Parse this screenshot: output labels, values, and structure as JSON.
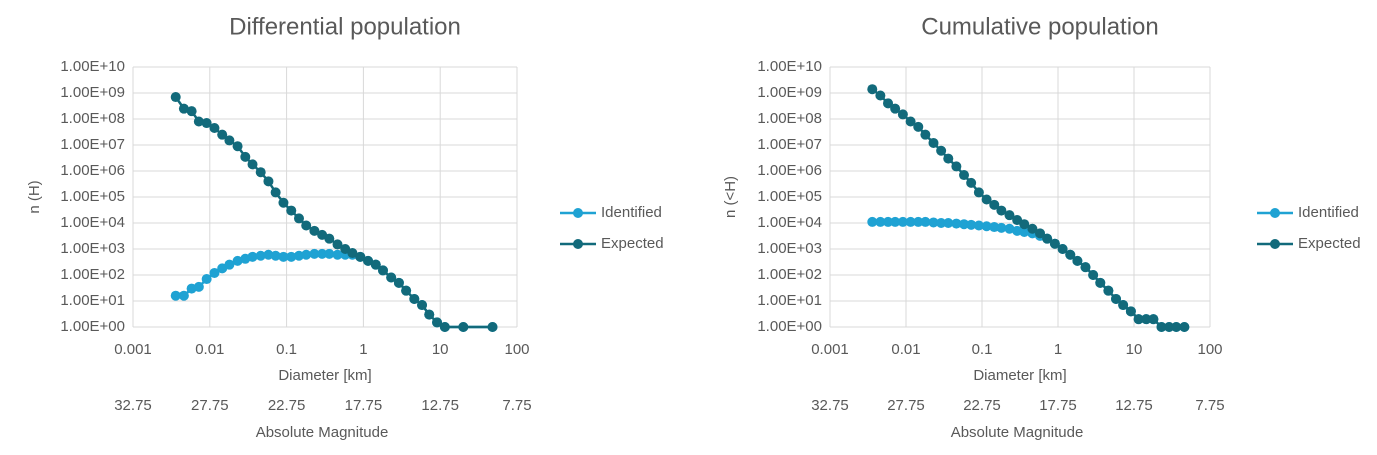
{
  "chart_data": [
    {
      "type": "line",
      "title": "Differential population",
      "x_label": "Diameter [km]",
      "y_label": "n (H)",
      "x2_label": "Absolute Magnitude",
      "x": [
        0.0036,
        0.0046,
        0.0058,
        0.0072,
        0.0091,
        0.0115,
        0.0145,
        0.018,
        0.023,
        0.029,
        0.036,
        0.046,
        0.058,
        0.072,
        0.091,
        0.115,
        0.145,
        0.18,
        0.23,
        0.29,
        0.36,
        0.46,
        0.58,
        0.72,
        0.91,
        1.15,
        1.45,
        1.8,
        2.3,
        2.9,
        3.6,
        4.6,
        5.8,
        7.2,
        9.1,
        11.5,
        20,
        48
      ],
      "series": [
        {
          "name": "Identified",
          "color": "#1fa2d3",
          "values": [
            16,
            16,
            30,
            35,
            70,
            120,
            180,
            250,
            350,
            420,
            500,
            550,
            600,
            550,
            500,
            500,
            550,
            600,
            650,
            650,
            650,
            600,
            600,
            600,
            500,
            350,
            250,
            150,
            80,
            50,
            25,
            12,
            7,
            3,
            1.5,
            1,
            1,
            1
          ]
        },
        {
          "name": "Expected",
          "color": "#126a7b",
          "values": [
            700000000,
            250000000,
            200000000,
            80000000,
            70000000,
            45000000,
            25000000,
            15000000,
            9000000,
            3500000,
            1800000,
            900000,
            400000,
            150000,
            60000,
            30000,
            15000,
            8000,
            5000,
            3500,
            2500,
            1500,
            1000,
            700,
            500,
            350,
            250,
            150,
            80,
            50,
            25,
            12,
            7,
            3,
            1.5,
            1,
            1,
            1
          ]
        }
      ],
      "xscale": "log",
      "yscale": "log",
      "xlim": [
        0.001,
        100
      ],
      "xticks": [
        0.001,
        0.01,
        0.1,
        1,
        10,
        100
      ],
      "ylim": [
        1,
        10000000000
      ],
      "yticks": [
        {
          "value": 1,
          "label": "1.00E+00"
        },
        {
          "value": 10,
          "label": "1.00E+01"
        },
        {
          "value": 100,
          "label": "1.00E+02"
        },
        {
          "value": 1000,
          "label": "1.00E+03"
        },
        {
          "value": 10000,
          "label": "1.00E+04"
        },
        {
          "value": 100000,
          "label": "1.00E+05"
        },
        {
          "value": 1000000,
          "label": "1.00E+06"
        },
        {
          "value": 10000000,
          "label": "1.00E+07"
        },
        {
          "value": 100000000,
          "label": "1.00E+08"
        },
        {
          "value": 1000000000,
          "label": "1.00E+09"
        },
        {
          "value": 10000000000,
          "label": "1.00E+10"
        }
      ],
      "x2lim": [
        32.75,
        7.75
      ],
      "x2ticks": [
        32.75,
        27.75,
        22.75,
        17.75,
        12.75,
        7.75
      ],
      "grid": true,
      "legend": "right"
    },
    {
      "type": "line",
      "title": "Cumulative population",
      "x_label": "Diameter [km]",
      "y_label": "n (<H)",
      "x2_label": "Absolute Magnitude",
      "x": [
        0.0036,
        0.0046,
        0.0058,
        0.0072,
        0.0091,
        0.0115,
        0.0145,
        0.018,
        0.023,
        0.029,
        0.036,
        0.046,
        0.058,
        0.072,
        0.091,
        0.115,
        0.145,
        0.18,
        0.23,
        0.29,
        0.36,
        0.46,
        0.58,
        0.72,
        0.91,
        1.15,
        1.45,
        1.8,
        2.3,
        2.9,
        3.6,
        4.6,
        5.8,
        7.2,
        9.1,
        11.5,
        14.5,
        18,
        23,
        29,
        36,
        46
      ],
      "series": [
        {
          "name": "Identified",
          "color": "#1fa2d3",
          "values": [
            11000,
            11000,
            11000,
            11000,
            11000,
            11000,
            11000,
            11000,
            10500,
            10000,
            10000,
            9500,
            9000,
            8500,
            8000,
            7500,
            7000,
            6500,
            6000,
            5000,
            4500,
            4000,
            3200,
            2500,
            1600,
            1000,
            600,
            350,
            200,
            100,
            50,
            25,
            12,
            7,
            4,
            2,
            2,
            2,
            1,
            1,
            1,
            1
          ]
        },
        {
          "name": "Expected",
          "color": "#126a7b",
          "values": [
            1400000000,
            800000000,
            400000000,
            250000000,
            150000000,
            80000000,
            50000000,
            25000000,
            12000000,
            6000000,
            3000000,
            1500000,
            700000,
            350000,
            150000,
            80000,
            50000,
            30000,
            20000,
            13000,
            9000,
            6000,
            4000,
            2500,
            1600,
            1000,
            600,
            350,
            200,
            100,
            50,
            25,
            12,
            7,
            4,
            2,
            2,
            2,
            1,
            1,
            1,
            1
          ]
        }
      ],
      "xscale": "log",
      "yscale": "log",
      "xlim": [
        0.001,
        100
      ],
      "xticks": [
        0.001,
        0.01,
        0.1,
        1,
        10,
        100
      ],
      "ylim": [
        1,
        10000000000
      ],
      "yticks": [
        {
          "value": 1,
          "label": "1.00E+00"
        },
        {
          "value": 10,
          "label": "1.00E+01"
        },
        {
          "value": 100,
          "label": "1.00E+02"
        },
        {
          "value": 1000,
          "label": "1.00E+03"
        },
        {
          "value": 10000,
          "label": "1.00E+04"
        },
        {
          "value": 100000,
          "label": "1.00E+05"
        },
        {
          "value": 1000000,
          "label": "1.00E+06"
        },
        {
          "value": 10000000,
          "label": "1.00E+07"
        },
        {
          "value": 100000000,
          "label": "1.00E+08"
        },
        {
          "value": 1000000000,
          "label": "1.00E+09"
        },
        {
          "value": 10000000000,
          "label": "1.00E+10"
        }
      ],
      "x2lim": [
        32.75,
        7.75
      ],
      "x2ticks": [
        32.75,
        27.75,
        22.75,
        17.75,
        12.75,
        7.75
      ],
      "grid": true,
      "legend": "right"
    }
  ]
}
